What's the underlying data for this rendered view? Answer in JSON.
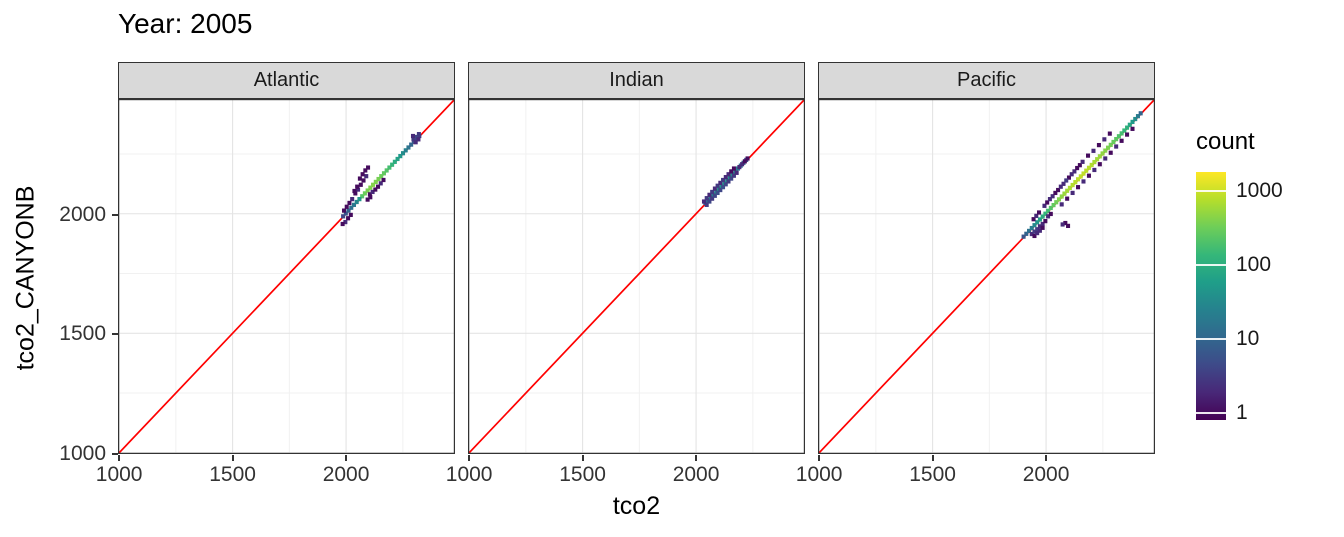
{
  "title": "Year: 2005",
  "styles": {
    "strip_bg": "#d9d9d9",
    "panel_border": "#333333",
    "grid_major": "#e4e4e4",
    "grid_minor": "#f1f1f1",
    "axis_text": "#333333",
    "reference_line_color": "#ff0000"
  },
  "chart_data": {
    "type": "heatmap",
    "title": "Year: 2005",
    "xlabel": "tco2",
    "ylabel": "tco2_CANYONB",
    "x_ticks": [
      1000,
      1500,
      2000
    ],
    "y_ticks": [
      1000,
      1500,
      2000
    ],
    "minor_ticks": [
      1250,
      1750,
      2250
    ],
    "xlim": [
      995,
      2480
    ],
    "ylim": [
      995,
      2480
    ],
    "grid": true,
    "reference_line": {
      "type": "identity",
      "equation": "y = x",
      "color": "#ff0000"
    },
    "bin_size": 16,
    "legend": {
      "title": "count",
      "position": "right",
      "scale": "log10",
      "ticks": [
        1,
        10,
        100,
        1000
      ],
      "limits": [
        0.8,
        1800
      ],
      "viridis_stops": [
        "#440154",
        "#482878",
        "#3e4a89",
        "#31688e",
        "#26828e",
        "#1f9e89",
        "#35b779",
        "#6ece58",
        "#b5de2b",
        "#fde725"
      ]
    },
    "facets": [
      {
        "label": "Atlantic",
        "bins": [
          [
            2070,
            2074,
            220
          ],
          [
            2082,
            2086,
            300
          ],
          [
            2094,
            2098,
            360
          ],
          [
            2106,
            2110,
            400
          ],
          [
            2118,
            2122,
            420
          ],
          [
            2130,
            2134,
            400
          ],
          [
            2142,
            2146,
            360
          ],
          [
            2154,
            2158,
            320
          ],
          [
            2166,
            2170,
            270
          ],
          [
            2178,
            2182,
            220
          ],
          [
            2190,
            2194,
            170
          ],
          [
            2202,
            2206,
            130
          ],
          [
            2214,
            2218,
            95
          ],
          [
            2226,
            2230,
            70
          ],
          [
            2238,
            2242,
            50
          ],
          [
            2250,
            2254,
            35
          ],
          [
            1986,
            1990,
            4
          ],
          [
            1998,
            2002,
            6
          ],
          [
            2010,
            2014,
            9
          ],
          [
            2022,
            2026,
            13
          ],
          [
            2034,
            2038,
            18
          ],
          [
            2046,
            2050,
            28
          ],
          [
            2058,
            2062,
            45
          ],
          [
            2262,
            2266,
            24
          ],
          [
            2274,
            2278,
            16
          ],
          [
            2286,
            2290,
            10
          ],
          [
            2298,
            2302,
            7
          ],
          [
            2310,
            2314,
            5
          ],
          [
            2322,
            2326,
            3
          ],
          [
            2296,
            2312,
            3
          ],
          [
            2308,
            2322,
            4
          ],
          [
            2318,
            2312,
            2
          ],
          [
            2306,
            2300,
            2
          ],
          [
            2320,
            2334,
            3
          ],
          [
            2294,
            2326,
            2
          ],
          [
            2040,
            2086,
            1
          ],
          [
            2052,
            2102,
            2
          ],
          [
            2064,
            2122,
            1
          ],
          [
            2076,
            2140,
            1
          ],
          [
            2088,
            2158,
            2
          ],
          [
            2060,
            2148,
            1
          ],
          [
            2072,
            2166,
            1
          ],
          [
            2084,
            2182,
            1
          ],
          [
            2096,
            2194,
            1
          ],
          [
            2104,
            2082,
            1
          ],
          [
            2116,
            2092,
            2
          ],
          [
            2128,
            2102,
            1
          ],
          [
            2140,
            2114,
            1
          ],
          [
            2152,
            2128,
            2
          ],
          [
            2164,
            2142,
            1
          ],
          [
            2026,
            2062,
            2
          ],
          [
            2014,
            2046,
            1
          ],
          [
            2002,
            2030,
            1
          ],
          [
            1990,
            2014,
            1
          ],
          [
            2008,
            1982,
            1
          ],
          [
            1996,
            1966,
            2
          ],
          [
            1984,
            1958,
            1
          ],
          [
            2020,
            1996,
            1
          ],
          [
            2036,
            2096,
            1
          ],
          [
            2048,
            2114,
            1
          ],
          [
            2094,
            2060,
            1
          ],
          [
            2106,
            2070,
            1
          ]
        ]
      },
      {
        "label": "Indian",
        "bins": [
          [
            2040,
            2046,
            8
          ],
          [
            2052,
            2058,
            12
          ],
          [
            2064,
            2070,
            17
          ],
          [
            2076,
            2082,
            24
          ],
          [
            2088,
            2094,
            32
          ],
          [
            2100,
            2106,
            40
          ],
          [
            2112,
            2118,
            46
          ],
          [
            2124,
            2130,
            50
          ],
          [
            2136,
            2142,
            48
          ],
          [
            2148,
            2154,
            42
          ],
          [
            2160,
            2166,
            36
          ],
          [
            2172,
            2178,
            28
          ],
          [
            2184,
            2190,
            20
          ],
          [
            2196,
            2202,
            14
          ],
          [
            2208,
            2214,
            9
          ],
          [
            2220,
            2226,
            6
          ],
          [
            2046,
            2038,
            3
          ],
          [
            2058,
            2052,
            4
          ],
          [
            2070,
            2064,
            3
          ],
          [
            2082,
            2076,
            4
          ],
          [
            2094,
            2088,
            5
          ],
          [
            2106,
            2100,
            4
          ],
          [
            2118,
            2112,
            5
          ],
          [
            2130,
            2124,
            4
          ],
          [
            2142,
            2136,
            3
          ],
          [
            2154,
            2148,
            4
          ],
          [
            2166,
            2160,
            3
          ],
          [
            2178,
            2172,
            2
          ],
          [
            2034,
            2052,
            2
          ],
          [
            2046,
            2066,
            3
          ],
          [
            2058,
            2080,
            2
          ],
          [
            2070,
            2092,
            3
          ],
          [
            2082,
            2106,
            2
          ],
          [
            2094,
            2118,
            3
          ],
          [
            2106,
            2130,
            2
          ],
          [
            2118,
            2142,
            3
          ],
          [
            2130,
            2154,
            2
          ],
          [
            2142,
            2166,
            2
          ],
          [
            2154,
            2178,
            1
          ],
          [
            2166,
            2190,
            1
          ],
          [
            2190,
            2196,
            2
          ],
          [
            2202,
            2208,
            2
          ],
          [
            2214,
            2220,
            1
          ],
          [
            2226,
            2232,
            1
          ]
        ]
      },
      {
        "label": "Pacific",
        "bins": [
          [
            1900,
            1905,
            6
          ],
          [
            1912,
            1917,
            9
          ],
          [
            1924,
            1929,
            14
          ],
          [
            1936,
            1941,
            20
          ],
          [
            1948,
            1953,
            30
          ],
          [
            1960,
            1965,
            45
          ],
          [
            1972,
            1977,
            65
          ],
          [
            1984,
            1989,
            90
          ],
          [
            1996,
            2001,
            125
          ],
          [
            2008,
            2013,
            165
          ],
          [
            2020,
            2025,
            215
          ],
          [
            2032,
            2037,
            270
          ],
          [
            2044,
            2049,
            330
          ],
          [
            2056,
            2061,
            400
          ],
          [
            2068,
            2073,
            470
          ],
          [
            2080,
            2085,
            540
          ],
          [
            2092,
            2097,
            610
          ],
          [
            2104,
            2109,
            680
          ],
          [
            2116,
            2121,
            740
          ],
          [
            2128,
            2133,
            790
          ],
          [
            2140,
            2145,
            830
          ],
          [
            2152,
            2157,
            850
          ],
          [
            2164,
            2169,
            840
          ],
          [
            2176,
            2181,
            810
          ],
          [
            2188,
            2193,
            770
          ],
          [
            2200,
            2205,
            720
          ],
          [
            2212,
            2217,
            660
          ],
          [
            2224,
            2229,
            600
          ],
          [
            2236,
            2241,
            540
          ],
          [
            2248,
            2253,
            480
          ],
          [
            2260,
            2265,
            430
          ],
          [
            2272,
            2277,
            380
          ],
          [
            2284,
            2289,
            330
          ],
          [
            2296,
            2301,
            290
          ],
          [
            2308,
            2313,
            250
          ],
          [
            2320,
            2325,
            210
          ],
          [
            2332,
            2337,
            175
          ],
          [
            2344,
            2349,
            140
          ],
          [
            2356,
            2361,
            110
          ],
          [
            2368,
            2373,
            80
          ],
          [
            2380,
            2385,
            55
          ],
          [
            2392,
            2397,
            35
          ],
          [
            2404,
            2409,
            20
          ],
          [
            2416,
            2421,
            10
          ],
          [
            1936,
            1916,
            2
          ],
          [
            1948,
            1926,
            3
          ],
          [
            1960,
            1936,
            3
          ],
          [
            1972,
            1948,
            2
          ],
          [
            1984,
            1958,
            2
          ],
          [
            1996,
            1970,
            1
          ],
          [
            1948,
            1908,
            1
          ],
          [
            1960,
            1920,
            2
          ],
          [
            1972,
            1930,
            2
          ],
          [
            1984,
            1942,
            1
          ],
          [
            2008,
            1990,
            2
          ],
          [
            2020,
            2000,
            1
          ],
          [
            2084,
            1962,
            1
          ],
          [
            2096,
            1950,
            1
          ],
          [
            2072,
            1956,
            2
          ],
          [
            1944,
            1978,
            1
          ],
          [
            1956,
            1992,
            2
          ],
          [
            1968,
            2006,
            1
          ],
          [
            1992,
            2034,
            2
          ],
          [
            2004,
            2048,
            1
          ],
          [
            2028,
            2074,
            2
          ],
          [
            2052,
            2100,
            1
          ],
          [
            2076,
            2126,
            2
          ],
          [
            2100,
            2152,
            1
          ],
          [
            2124,
            2178,
            2
          ],
          [
            2148,
            2204,
            1
          ],
          [
            2064,
            2114,
            2
          ],
          [
            2040,
            2088,
            1
          ],
          [
            2016,
            2062,
            2
          ],
          [
            2088,
            2140,
            3
          ],
          [
            2112,
            2166,
            2
          ],
          [
            2136,
            2192,
            1
          ],
          [
            2160,
            2218,
            2
          ],
          [
            2184,
            2244,
            1
          ],
          [
            2208,
            2264,
            2
          ],
          [
            2232,
            2288,
            1
          ],
          [
            2256,
            2312,
            2
          ],
          [
            2280,
            2336,
            1
          ],
          [
            2068,
            2040,
            2
          ],
          [
            2092,
            2064,
            1
          ],
          [
            2116,
            2088,
            2
          ],
          [
            2140,
            2112,
            1
          ],
          [
            2164,
            2136,
            2
          ],
          [
            2188,
            2160,
            1
          ],
          [
            2212,
            2184,
            2
          ],
          [
            2236,
            2208,
            1
          ],
          [
            2260,
            2232,
            2
          ],
          [
            2284,
            2256,
            1
          ],
          [
            2308,
            2282,
            2
          ],
          [
            2332,
            2306,
            1
          ],
          [
            2356,
            2332,
            1
          ],
          [
            2380,
            2356,
            1
          ]
        ]
      }
    ]
  }
}
